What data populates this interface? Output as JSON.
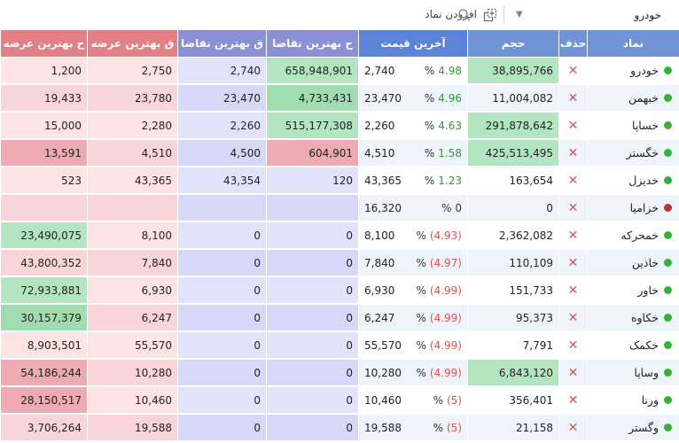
{
  "toolbar": {
    "symbol_value": "خودرو",
    "search_placeholder": "افزودن نماد"
  },
  "headers": {
    "symbol": "نماد",
    "delete": "حذف",
    "volume": "حجم",
    "last_price": "آخرین قیمت",
    "best_bid_price": "ح بهترین تقاضا",
    "best_bid_qty": "ق بهترین تقاضا",
    "best_ask_qty": "ق بهترین عرضه",
    "best_ask_price": "ح بهترین عرضه"
  },
  "colors": {
    "status_green": "#2fb52f",
    "status_red": "#c0303a",
    "positive": "#2d9a2d",
    "negative": "#d9534f"
  },
  "rows": [
    {
      "symbol": "خودرو",
      "status": "green",
      "volume": "38,895,766",
      "vol_hl": "green",
      "change": "4.98",
      "dir": "pos",
      "last": "2,740",
      "bbid": "658,948,901",
      "bbid_hl": "green",
      "qbid": "2,740",
      "qask": "2,750",
      "bask": "1,200",
      "bask_hl": "none"
    },
    {
      "symbol": "خبهمن",
      "status": "green",
      "volume": "11,004,082",
      "vol_hl": "none",
      "change": "4.96",
      "dir": "pos",
      "last": "23,470",
      "bbid": "4,733,431",
      "bbid_hl": "green2",
      "qbid": "23,470",
      "qask": "23,780",
      "bask": "19,433",
      "bask_hl": "none"
    },
    {
      "symbol": "خساپا",
      "status": "green",
      "volume": "291,878,642",
      "vol_hl": "green",
      "change": "4.63",
      "dir": "pos",
      "last": "2,260",
      "bbid": "515,177,308",
      "bbid_hl": "green",
      "qbid": "2,260",
      "qask": "2,280",
      "bask": "15,000",
      "bask_hl": "none"
    },
    {
      "symbol": "خگستر",
      "status": "green",
      "volume": "425,513,495",
      "vol_hl": "green",
      "change": "1.58",
      "dir": "pos",
      "last": "4,510",
      "bbid": "604,901",
      "bbid_hl": "red",
      "qbid": "4,500",
      "qask": "4,510",
      "bask": "13,591",
      "bask_hl": "red"
    },
    {
      "symbol": "خدیزل",
      "status": "green",
      "volume": "163,654",
      "vol_hl": "none",
      "change": "1.23",
      "dir": "pos",
      "last": "43,365",
      "bbid": "120",
      "bbid_hl": "none",
      "qbid": "43,354",
      "qask": "43,365",
      "bask": "523",
      "bask_hl": "none"
    },
    {
      "symbol": "خزامیا",
      "status": "red",
      "volume": "0",
      "vol_hl": "none",
      "change": "0",
      "dir": "zero",
      "last": "16,320",
      "bbid": "",
      "bbid_hl": "none",
      "qbid": "",
      "qask": "",
      "bask": "",
      "bask_hl": "none"
    },
    {
      "symbol": "خمحرکه",
      "status": "green",
      "volume": "2,362,082",
      "vol_hl": "none",
      "change": "(4.93)",
      "dir": "neg",
      "last": "8,100",
      "bbid": "0",
      "bbid_hl": "none",
      "qbid": "0",
      "qask": "8,100",
      "bask": "23,490,075",
      "bask_hl": "green"
    },
    {
      "symbol": "خاذین",
      "status": "green",
      "volume": "110,109",
      "vol_hl": "none",
      "change": "(4.97)",
      "dir": "neg",
      "last": "7,840",
      "bbid": "0",
      "bbid_hl": "none",
      "qbid": "0",
      "qask": "7,840",
      "bask": "43,800,352",
      "bask_hl": "none"
    },
    {
      "symbol": "خاور",
      "status": "green",
      "volume": "151,733",
      "vol_hl": "none",
      "change": "(4.99)",
      "dir": "neg",
      "last": "6,930",
      "bbid": "0",
      "bbid_hl": "none",
      "qbid": "0",
      "qask": "6,930",
      "bask": "72,933,881",
      "bask_hl": "green"
    },
    {
      "symbol": "خکاوه",
      "status": "green",
      "volume": "95,373",
      "vol_hl": "none",
      "change": "(4.99)",
      "dir": "neg",
      "last": "6,247",
      "bbid": "0",
      "bbid_hl": "none",
      "qbid": "0",
      "qask": "6,247",
      "bask": "30,157,379",
      "bask_hl": "green2"
    },
    {
      "symbol": "خکمک",
      "status": "green",
      "volume": "7,791",
      "vol_hl": "none",
      "change": "(4.99)",
      "dir": "neg",
      "last": "55,570",
      "bbid": "0",
      "bbid_hl": "none",
      "qbid": "0",
      "qask": "55,570",
      "bask": "8,903,501",
      "bask_hl": "none"
    },
    {
      "symbol": "وساپا",
      "status": "green",
      "volume": "6,843,120",
      "vol_hl": "green",
      "change": "(4.99)",
      "dir": "neg",
      "last": "10,280",
      "bbid": "0",
      "bbid_hl": "none",
      "qbid": "0",
      "qask": "10,280",
      "bask": "54,186,244",
      "bask_hl": "red"
    },
    {
      "symbol": "ورنا",
      "status": "green",
      "volume": "356,401",
      "vol_hl": "none",
      "change": "(5)",
      "dir": "neg",
      "last": "10,460",
      "bbid": "0",
      "bbid_hl": "none",
      "qbid": "0",
      "qask": "10,460",
      "bask": "28,150,517",
      "bask_hl": "red"
    },
    {
      "symbol": "وگستر",
      "status": "green",
      "volume": "21,158",
      "vol_hl": "none",
      "change": "(5)",
      "dir": "neg",
      "last": "19,588",
      "bbid": "0",
      "bbid_hl": "none",
      "qbid": "0",
      "qask": "19,588",
      "bask": "3,706,264",
      "bask_hl": "none"
    }
  ]
}
